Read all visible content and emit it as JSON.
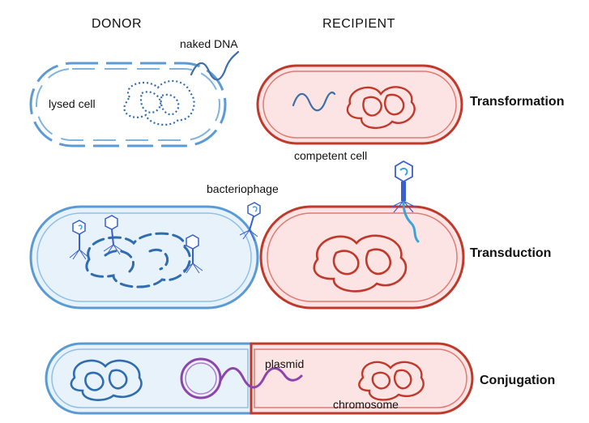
{
  "headers": {
    "donor": "DONOR",
    "recipient": "RECIPIENT"
  },
  "labels": {
    "naked_dna": "naked DNA",
    "lysed_cell": "lysed cell",
    "competent_cell": "competent cell",
    "bacteriophage": "bacteriophage",
    "plasmid": "plasmid",
    "chromosome": "chromosome"
  },
  "processes": [
    "Transformation",
    "Transduction",
    "Conjugation"
  ],
  "colors": {
    "donor_membrane": "#5b9bd5",
    "donor_dna": "#2f6db0",
    "recipient_membrane": "#c0392b",
    "recipient_fill": "#fbe4e3",
    "donor_fill": "#e8f2fb",
    "plasmid": "#8e44ad",
    "phage": "#3a5fcd"
  }
}
